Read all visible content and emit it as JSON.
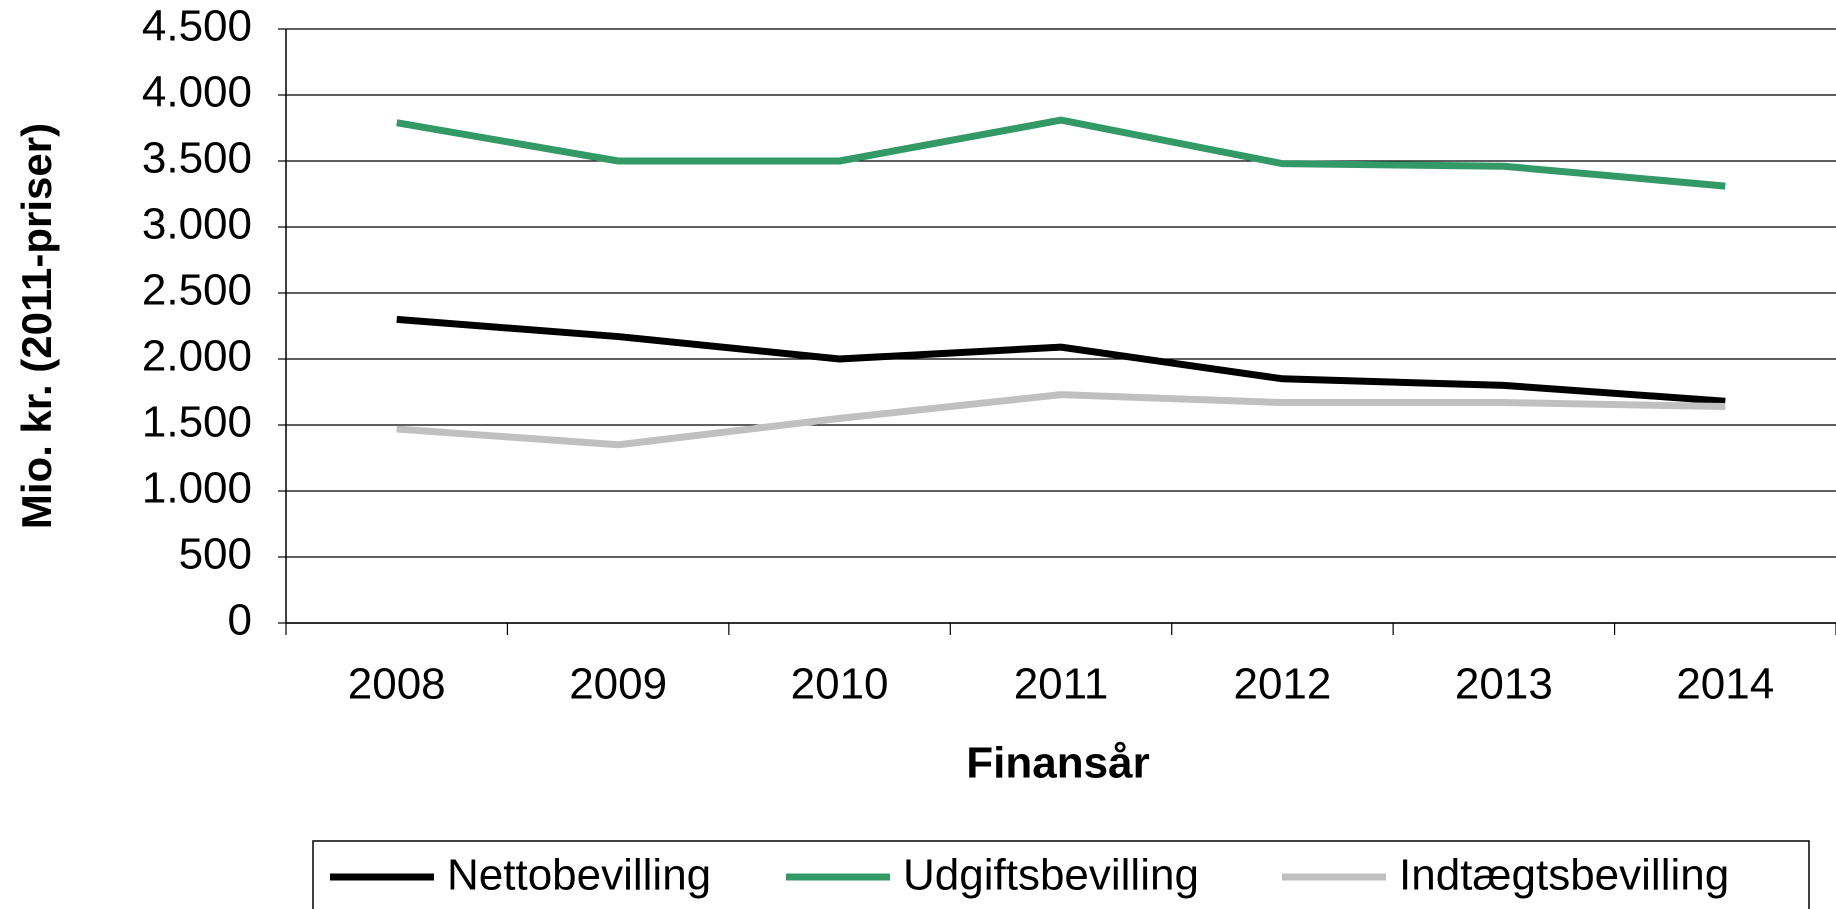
{
  "chart_data": {
    "type": "line",
    "xlabel": "Finansår",
    "ylabel": "Mio. kr. (2011-priser)",
    "categories": [
      "2008",
      "2009",
      "2010",
      "2011",
      "2012",
      "2013",
      "2014"
    ],
    "series": [
      {
        "name": "Nettobevilling",
        "color": "#000000",
        "values": [
          2300,
          2170,
          2000,
          2090,
          1850,
          1800,
          1680
        ]
      },
      {
        "name": "Udgiftsbevilling",
        "color": "#339966",
        "values": [
          3790,
          3500,
          3500,
          3810,
          3480,
          3460,
          3310
        ]
      },
      {
        "name": "Indtægtsbevilling",
        "color": "#c0c0c0",
        "values": [
          1470,
          1350,
          1550,
          1730,
          1670,
          1670,
          1640
        ]
      }
    ],
    "ylim": [
      0,
      4500
    ],
    "yticks": [
      0,
      500,
      {
        "value": 1000,
        "label": "1.000"
      },
      {
        "value": 1500,
        "label": "1.500"
      },
      {
        "value": 2000,
        "label": "2.000"
      },
      {
        "value": 2500,
        "label": "2.500"
      },
      {
        "value": 3000,
        "label": "3.000"
      },
      {
        "value": 3500,
        "label": "3.500"
      },
      {
        "value": 4000,
        "label": "4.000"
      },
      {
        "value": 4500,
        "label": "4.500"
      }
    ],
    "grid": true,
    "legend": "bottom"
  }
}
